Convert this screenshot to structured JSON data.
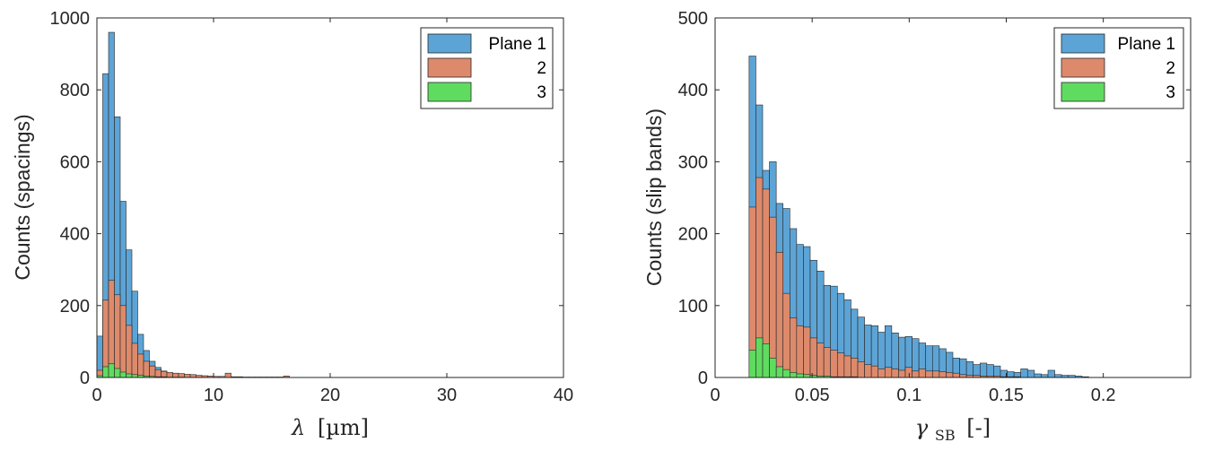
{
  "colors": {
    "plane1": "#5da4d6",
    "plane2": "#dd8a6c",
    "plane3": "#5fdc5f",
    "edge": "#262626"
  },
  "chart_data": [
    {
      "type": "bar",
      "subtype": "overlaid-histogram",
      "xlabel_symbol": "λ",
      "xlabel_unit": "[µm]",
      "ylabel": "Counts (spacings)",
      "xlim": [
        0,
        40
      ],
      "ylim": [
        0,
        1000
      ],
      "xticks": [
        0,
        10,
        20,
        30,
        40
      ],
      "yticks": [
        0,
        200,
        400,
        600,
        800,
        1000
      ],
      "xtick_labels": [
        "0",
        "10",
        "20",
        "30",
        "40"
      ],
      "ytick_labels": [
        "0",
        "200",
        "400",
        "600",
        "800",
        "1000"
      ],
      "bin_start": 0,
      "bin_width": 0.5,
      "grid": false,
      "legend_position": "top-right",
      "series": [
        {
          "name": "Plane 1",
          "values": [
            115,
            845,
            960,
            725,
            490,
            355,
            240,
            120,
            75,
            45,
            28,
            18,
            12,
            9,
            7,
            6,
            5,
            4,
            3,
            3,
            2,
            2,
            2,
            1,
            1,
            1,
            1,
            1,
            1,
            1,
            1,
            1,
            1
          ]
        },
        {
          "name": "2",
          "values": [
            20,
            215,
            270,
            230,
            200,
            145,
            95,
            65,
            45,
            32,
            22,
            17,
            14,
            12,
            11,
            9,
            8,
            6,
            5,
            4,
            3,
            3,
            12,
            2,
            2,
            1,
            1,
            1,
            1,
            1,
            1,
            1,
            4
          ]
        },
        {
          "name": "3",
          "values": [
            5,
            30,
            38,
            25,
            15,
            10,
            8,
            6,
            4,
            3,
            2,
            2,
            1,
            1,
            1
          ]
        }
      ]
    },
    {
      "type": "bar",
      "subtype": "overlaid-histogram",
      "xlabel_symbol": "γ",
      "xlabel_subscript": "SB",
      "xlabel_unit": "[-]",
      "ylabel": "Counts (slip bands)",
      "xlim": [
        0,
        0.245
      ],
      "ylim": [
        0,
        500
      ],
      "xticks": [
        0,
        0.05,
        0.1,
        0.15,
        0.2
      ],
      "yticks": [
        0,
        100,
        200,
        300,
        400,
        500
      ],
      "xtick_labels": [
        "0",
        "0.05",
        "0.1",
        "0.15",
        "0.2"
      ],
      "ytick_labels": [
        "0",
        "100",
        "200",
        "300",
        "400",
        "500"
      ],
      "bin_start": 0.0175,
      "bin_width": 0.0035,
      "grid": false,
      "legend_position": "top-right",
      "series": [
        {
          "name": "Plane 1",
          "values": [
            447,
            379,
            288,
            300,
            242,
            235,
            207,
            185,
            182,
            163,
            148,
            128,
            127,
            117,
            108,
            95,
            84,
            73,
            72,
            63,
            72,
            62,
            56,
            57,
            54,
            48,
            44,
            44,
            40,
            35,
            27,
            26,
            22,
            18,
            20,
            18,
            16,
            10,
            8,
            7,
            12,
            10,
            5,
            4,
            10,
            4,
            3,
            3,
            2,
            1
          ]
        },
        {
          "name": "2",
          "values": [
            237,
            278,
            262,
            223,
            174,
            117,
            83,
            72,
            70,
            55,
            48,
            42,
            38,
            34,
            30,
            27,
            22,
            18,
            16,
            12,
            14,
            12,
            10,
            14,
            9,
            12,
            9,
            9,
            8,
            7,
            6,
            4,
            3,
            3,
            2,
            2,
            2,
            1,
            1,
            1
          ]
        },
        {
          "name": "3",
          "values": [
            38,
            55,
            47,
            27,
            15,
            11,
            7,
            5,
            4,
            3,
            2,
            2,
            1,
            1,
            1,
            1
          ]
        }
      ]
    }
  ]
}
